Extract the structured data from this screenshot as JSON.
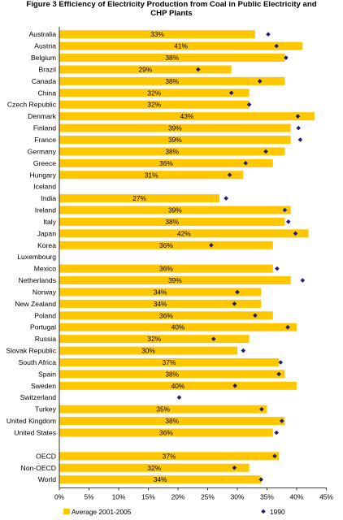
{
  "title_line1": "Figure 3  Efficiency of Electricity Production from Coal in Public Electricity and",
  "title_line2": "CHP Plants",
  "chart_data": {
    "type": "bar",
    "orientation": "horizontal",
    "title": "Figure 3  Efficiency of Electricity Production from Coal in Public Electricity and CHP Plants",
    "xlim": [
      0,
      45
    ],
    "x_ticks": [
      "0%",
      "5%",
      "10%",
      "15%",
      "20%",
      "25%",
      "30%",
      "35%",
      "40%",
      "45%"
    ],
    "grid": false,
    "legend_position": "bottom",
    "colors": {
      "bar": "#FFC700",
      "marker": "#1F1F78"
    },
    "series": [
      {
        "name": "Average 2001-2005",
        "kind": "bar"
      },
      {
        "name": "1990",
        "kind": "marker"
      }
    ],
    "categories": [
      {
        "name": "Australia",
        "avg": 33,
        "label": "33%",
        "y1990": 35.2
      },
      {
        "name": "Austria",
        "avg": 41,
        "label": "41%",
        "y1990": 36.6
      },
      {
        "name": "Belgium",
        "avg": 38,
        "label": "38%",
        "y1990": 38.2
      },
      {
        "name": "Brazil",
        "avg": 29,
        "label": "29%",
        "y1990": 23.4
      },
      {
        "name": "Canada",
        "avg": 38,
        "label": "38%",
        "y1990": 33.8
      },
      {
        "name": "China",
        "avg": 32,
        "label": "32%",
        "y1990": 29.0
      },
      {
        "name": "Czech Republic",
        "avg": 32,
        "label": "32%",
        "y1990": 32.0
      },
      {
        "name": "Denmark",
        "avg": 43,
        "label": "43%",
        "y1990": 40.2
      },
      {
        "name": "Finland",
        "avg": 39,
        "label": "39%",
        "y1990": 40.3
      },
      {
        "name": "France",
        "avg": 39,
        "label": "39%",
        "y1990": 40.6
      },
      {
        "name": "Germany",
        "avg": 38,
        "label": "38%",
        "y1990": 34.8
      },
      {
        "name": "Greece",
        "avg": 36,
        "label": "36%",
        "y1990": 31.4
      },
      {
        "name": "Hungary",
        "avg": 31,
        "label": "31%",
        "y1990": 28.7
      },
      {
        "name": "Iceland",
        "avg": null,
        "label": "",
        "y1990": null
      },
      {
        "name": "India",
        "avg": 27,
        "label": "27%",
        "y1990": 28.1
      },
      {
        "name": "Ireland",
        "avg": 39,
        "label": "39%",
        "y1990": 38.0
      },
      {
        "name": "Italy",
        "avg": 38,
        "label": "38%",
        "y1990": 38.6
      },
      {
        "name": "Japan",
        "avg": 42,
        "label": "42%",
        "y1990": 39.8
      },
      {
        "name": "Korea",
        "avg": 36,
        "label": "36%",
        "y1990": 25.6
      },
      {
        "name": "Luxembourg",
        "avg": null,
        "label": "",
        "y1990": null
      },
      {
        "name": "Mexico",
        "avg": 36,
        "label": "36%",
        "y1990": 36.7
      },
      {
        "name": "Netherlands",
        "avg": 39,
        "label": "39%",
        "y1990": 41.0
      },
      {
        "name": "Norway",
        "avg": 34,
        "label": "34%",
        "y1990": 30.0
      },
      {
        "name": "New Zealand",
        "avg": 34,
        "label": "34%",
        "y1990": 29.5
      },
      {
        "name": "Poland",
        "avg": 36,
        "label": "36%",
        "y1990": 33.0
      },
      {
        "name": "Portugal",
        "avg": 40,
        "label": "40%",
        "y1990": 38.5
      },
      {
        "name": "Russia",
        "avg": 32,
        "label": "32%",
        "y1990": 26.0
      },
      {
        "name": "Slovak Republic",
        "avg": 30,
        "label": "30%",
        "y1990": 31.0
      },
      {
        "name": "South Africa",
        "avg": 37,
        "label": "37%",
        "y1990": 37.3
      },
      {
        "name": "Spain",
        "avg": 38,
        "label": "38%",
        "y1990": 37.0
      },
      {
        "name": "Sweden",
        "avg": 40,
        "label": "40%",
        "y1990": 29.6
      },
      {
        "name": "Switzerland",
        "avg": null,
        "label": "",
        "y1990": 20.2
      },
      {
        "name": "Turkey",
        "avg": 35,
        "label": "35%",
        "y1990": 34.1
      },
      {
        "name": "United Kingdom",
        "avg": 38,
        "label": "38%",
        "y1990": 37.5
      },
      {
        "name": "United States",
        "avg": 36,
        "label": "36%",
        "y1990": 36.6
      },
      {
        "name": "",
        "avg": null,
        "label": "",
        "y1990": null
      },
      {
        "name": "OECD",
        "avg": 37,
        "label": "37%",
        "y1990": 36.3
      },
      {
        "name": "Non-OECD",
        "avg": 32,
        "label": "32%",
        "y1990": 29.5
      },
      {
        "name": "World",
        "avg": 34,
        "label": "34%",
        "y1990": 34.0
      }
    ]
  }
}
